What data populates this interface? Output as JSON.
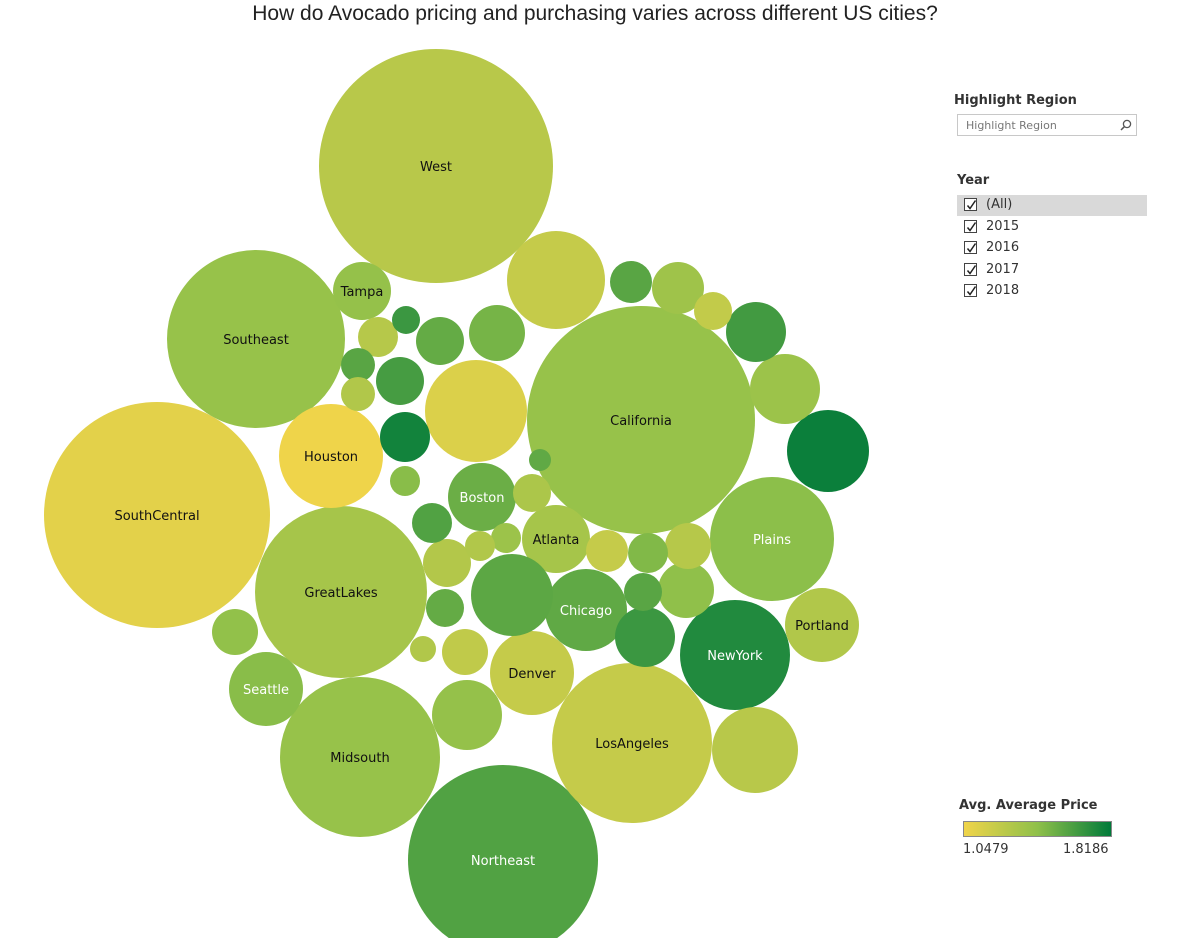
{
  "page": {
    "title": "How do Avocado pricing and purchasing varies across different US cities?"
  },
  "filters": {
    "highlight_heading": "Highlight Region",
    "highlight_placeholder": "Highlight Region",
    "year_heading": "Year",
    "year_options": [
      {
        "label": "(All)",
        "checked": true,
        "selected": true
      },
      {
        "label": "2015",
        "checked": true,
        "selected": false
      },
      {
        "label": "2016",
        "checked": true,
        "selected": false
      },
      {
        "label": "2017",
        "checked": true,
        "selected": false
      },
      {
        "label": "2018",
        "checked": true,
        "selected": false
      }
    ],
    "search_icon": "search-icon"
  },
  "legend": {
    "title": "Avg. Average Price",
    "min_label": "1.0479",
    "max_label": "1.8186",
    "colors": [
      "#f0d44a",
      "#8fc04a",
      "#007a3a"
    ]
  },
  "chart_data": {
    "type": "bubble",
    "title": "How do Avocado pricing and purchasing varies across different US cities?",
    "size_encodes": "total volume",
    "color_encodes": "Avg. Average Price",
    "color_range": [
      1.0479,
      1.8186
    ],
    "label_color_light": "#ffffff",
    "label_color_dark": "#111111",
    "bubbles": [
      {
        "name": "West",
        "r": 117,
        "price": 1.27
      },
      {
        "name": "SouthCentral",
        "r": 113,
        "price": 1.1
      },
      {
        "name": "California",
        "r": 114,
        "price": 1.4
      },
      {
        "name": "Northeast",
        "r": 95,
        "price": 1.6
      },
      {
        "name": "GreatLakes",
        "r": 86,
        "price": 1.34
      },
      {
        "name": "Southeast",
        "r": 89,
        "price": 1.4
      },
      {
        "name": "Midsouth",
        "r": 80,
        "price": 1.4
      },
      {
        "name": "LosAngeles",
        "r": 80,
        "price": 1.22
      },
      {
        "name": "Plains",
        "r": 62,
        "price": 1.44
      },
      {
        "name": "NewYork",
        "r": 55,
        "price": 1.73
      },
      {
        "name": "Houston",
        "r": 52,
        "price": 1.05
      },
      {
        "name": "Denver",
        "r": 42,
        "price": 1.22
      },
      {
        "name": "Chicago",
        "r": 41,
        "price": 1.56
      },
      {
        "name": "Boston",
        "r": 34,
        "price": 1.53
      },
      {
        "name": "Atlanta",
        "r": 34,
        "price": 1.34
      },
      {
        "name": "Portland",
        "r": 37,
        "price": 1.3
      },
      {
        "name": "Seattle",
        "r": 37,
        "price": 1.45
      },
      {
        "name": "Tampa",
        "r": 29,
        "price": 1.41
      },
      {
        "name": "",
        "r": 51,
        "price": 1.13
      },
      {
        "name": "",
        "r": 49,
        "price": 1.22
      },
      {
        "name": "",
        "r": 41,
        "price": 1.79
      },
      {
        "name": "",
        "r": 43,
        "price": 1.27
      },
      {
        "name": "",
        "r": 41,
        "price": 1.57
      },
      {
        "name": "",
        "r": 35,
        "price": 1.38
      },
      {
        "name": "",
        "r": 35,
        "price": 1.41
      },
      {
        "name": "",
        "r": 30,
        "price": 1.66
      },
      {
        "name": "",
        "r": 30,
        "price": 1.64
      },
      {
        "name": "",
        "r": 28,
        "price": 1.5
      },
      {
        "name": "",
        "r": 28,
        "price": 1.43
      },
      {
        "name": "",
        "r": 26,
        "price": 1.37
      },
      {
        "name": "",
        "r": 25,
        "price": 1.77
      },
      {
        "name": "",
        "r": 24,
        "price": 1.63
      },
      {
        "name": "",
        "r": 24,
        "price": 1.55
      },
      {
        "name": "",
        "r": 24,
        "price": 1.29
      },
      {
        "name": "",
        "r": 23,
        "price": 1.42
      },
      {
        "name": "",
        "r": 23,
        "price": 1.24
      },
      {
        "name": "",
        "r": 23,
        "price": 1.28
      },
      {
        "name": "",
        "r": 21,
        "price": 1.58
      },
      {
        "name": "",
        "r": 21,
        "price": 1.22
      },
      {
        "name": "",
        "r": 20,
        "price": 1.47
      },
      {
        "name": "",
        "r": 20,
        "price": 1.28
      },
      {
        "name": "",
        "r": 20,
        "price": 1.6
      },
      {
        "name": "",
        "r": 19,
        "price": 1.55
      },
      {
        "name": "",
        "r": 19,
        "price": 1.32
      },
      {
        "name": "",
        "r": 19,
        "price": 1.23
      },
      {
        "name": "",
        "r": 19,
        "price": 1.58
      },
      {
        "name": "",
        "r": 17,
        "price": 1.58
      },
      {
        "name": "",
        "r": 17,
        "price": 1.3
      },
      {
        "name": "",
        "r": 15,
        "price": 1.45
      },
      {
        "name": "",
        "r": 15,
        "price": 1.38
      },
      {
        "name": "",
        "r": 15,
        "price": 1.3
      },
      {
        "name": "",
        "r": 14,
        "price": 1.66
      },
      {
        "name": "",
        "r": 13,
        "price": 1.3
      },
      {
        "name": "",
        "r": 11,
        "price": 1.56
      }
    ]
  }
}
